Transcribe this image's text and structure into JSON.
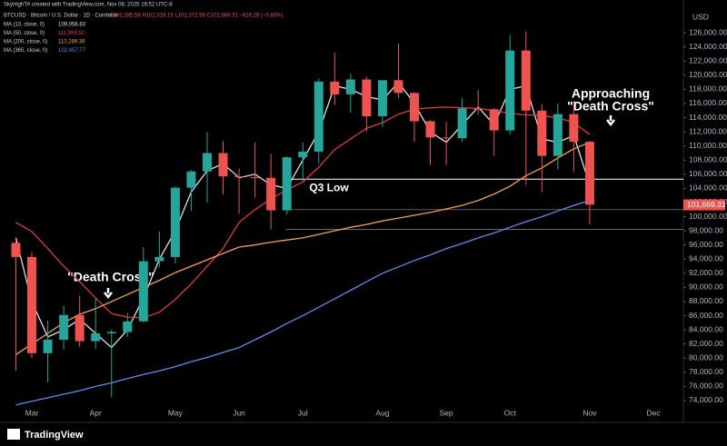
{
  "chart_data": {
    "type": "candlestick",
    "watermark": "SkyHighTA created with TradingView.com, Nov 08, 2025 19:52 UTC-8",
    "symbol_line": "BTCUSD · Bitcoin / U.S. Dollar · 1D · Coinbase",
    "ohlc_line": "O102,285.58  H102,319.15  L101,372.58  C101,669.31  −616.26 (−0.60%)",
    "currency": "USD",
    "brand": "TradingView",
    "categories": [
      null,
      "Mar",
      null,
      null,
      null,
      "Apr",
      null,
      null,
      null,
      null,
      "May",
      null,
      null,
      null,
      "Jun",
      null,
      null,
      null,
      "Jul",
      null,
      null,
      null,
      null,
      "Aug",
      null,
      null,
      null,
      "Sep",
      null,
      null,
      null,
      "Oct",
      null,
      null,
      null,
      null,
      "Nov",
      null,
      null,
      null,
      "Dec"
    ],
    "candles": {
      "up_color": "#26a69a",
      "down_color": "#ef5350",
      "open": [
        96300,
        94300,
        80700,
        82600,
        86100,
        82400,
        83500,
        83700,
        85200,
        93700,
        94300,
        104100,
        106400,
        109000,
        105700,
        105600,
        105500,
        100900,
        108400,
        109200,
        119100,
        117300,
        119400,
        114200,
        119300,
        117500,
        113500,
        111200,
        111100,
        115300,
        115200,
        112200,
        123500,
        115000,
        108600,
        114500,
        110600,
        null,
        null,
        null,
        null
      ],
      "high": [
        96500,
        95000,
        85300,
        87400,
        88800,
        88500,
        84000,
        86400,
        95700,
        97900,
        104300,
        106600,
        112000,
        110700,
        106800,
        110500,
        108900,
        108500,
        110500,
        119500,
        123200,
        120200,
        119800,
        119300,
        124500,
        117600,
        113700,
        113400,
        116800,
        117900,
        115400,
        125700,
        126200,
        115900,
        116000,
        116400,
        110700,
        null,
        null,
        null,
        null
      ],
      "low": [
        78200,
        80000,
        76600,
        81200,
        81600,
        81300,
        74500,
        83000,
        85100,
        92800,
        93400,
        100800,
        102000,
        103100,
        100400,
        102700,
        98200,
        100300,
        105100,
        107500,
        115800,
        114700,
        112000,
        112700,
        116800,
        110600,
        107300,
        107300,
        110600,
        114400,
        108600,
        111600,
        104500,
        103500,
        106700,
        106300,
        98900,
        null,
        null,
        null,
        null
      ],
      "close": [
        94300,
        80700,
        82600,
        86100,
        82400,
        83500,
        83700,
        85200,
        93700,
        94300,
        104100,
        106400,
        109000,
        105700,
        105600,
        105500,
        100900,
        108400,
        109200,
        119100,
        117300,
        119400,
        114200,
        119300,
        117500,
        113500,
        111200,
        111100,
        115300,
        115200,
        112200,
        123500,
        115000,
        108600,
        114500,
        110600,
        101700,
        null,
        null,
        null,
        null
      ]
    },
    "series": [
      {
        "name": "MA (10, close, 0)",
        "last_label": "109,056.83",
        "color": "#e0e0e0",
        "values": [
          97000,
          88000,
          83000,
          84000,
          85500,
          83500,
          81500,
          84000,
          88500,
          94000,
          98000,
          103500,
          106500,
          107500,
          105500,
          106000,
          104500,
          104000,
          108000,
          112000,
          118500,
          118000,
          117000,
          116500,
          119000,
          116000,
          112000,
          110500,
          113000,
          115500,
          113000,
          118000,
          118500,
          111000,
          110500,
          111500,
          104500,
          null,
          null,
          null,
          null
        ]
      },
      {
        "name": "MA (50, close, 0)",
        "last_label": "111,969.92",
        "color": "#e0393e",
        "values": [
          99200,
          97900,
          95500,
          93000,
          90800,
          88500,
          86300,
          85800,
          85700,
          86500,
          88300,
          90500,
          93000,
          95500,
          99200,
          101000,
          102500,
          103800,
          104900,
          107000,
          109500,
          111000,
          112500,
          113300,
          114500,
          115200,
          115400,
          115500,
          115400,
          115300,
          115000,
          114600,
          114400,
          114300,
          114000,
          113300,
          111600,
          null,
          null,
          null,
          null
        ]
      },
      {
        "name": "MA (200, close, 0)",
        "last_label": "110,289.36",
        "color": "#f5a04a",
        "values": [
          80500,
          82000,
          83500,
          85000,
          86200,
          87000,
          88000,
          89000,
          90000,
          91000,
          92100,
          93000,
          93900,
          94800,
          95700,
          96000,
          96400,
          96700,
          97000,
          97500,
          98000,
          98500,
          98900,
          99400,
          99800,
          100200,
          100600,
          101100,
          101600,
          102300,
          103200,
          104300,
          105800,
          106900,
          108300,
          109600,
          110500,
          null,
          null,
          null,
          null
        ]
      },
      {
        "name": "MA (365, close, 0)",
        "last_label": "102,457.77",
        "color": "#5b8def",
        "values": [
          73400,
          73900,
          74400,
          74900,
          75400,
          76000,
          76500,
          77100,
          77700,
          78200,
          78800,
          79500,
          80100,
          80800,
          81500,
          82600,
          83700,
          84900,
          86000,
          87200,
          88400,
          89600,
          90800,
          92000,
          92900,
          93800,
          94600,
          95500,
          96200,
          97000,
          97700,
          98500,
          99300,
          100000,
          100800,
          101600,
          102300,
          null,
          null,
          null,
          null
        ]
      }
    ],
    "levels": [
      {
        "label": "Q3 Low",
        "value": 105300,
        "color": "#ffffff"
      }
    ],
    "lines": [
      101000,
      98200
    ],
    "last_price": {
      "value": 101669.31,
      "label": "101,669.31"
    },
    "annotations": [
      "\"Death Cross\"",
      "Approaching",
      "\"Death Cross\""
    ],
    "ylim": [
      71300,
      129100
    ],
    "yticks": [
      {
        "value": 74000,
        "label": "74,000.00"
      },
      {
        "value": 76000,
        "label": "76,000.00"
      },
      {
        "value": 78000,
        "label": "78,000.00"
      },
      {
        "value": 80000,
        "label": "80,000.00"
      },
      {
        "value": 82000,
        "label": "82,000.00"
      },
      {
        "value": 84000,
        "label": "84,000.00"
      },
      {
        "value": 86000,
        "label": "86,000.00"
      },
      {
        "value": 88000,
        "label": "88,000.00"
      },
      {
        "value": 90000,
        "label": "90,000.00"
      },
      {
        "value": 92000,
        "label": "92,000.00"
      },
      {
        "value": 94000,
        "label": "94,000.00"
      },
      {
        "value": 96000,
        "label": "96,000.00"
      },
      {
        "value": 98000,
        "label": "98,000.00"
      },
      {
        "value": 100000,
        "label": "100,000.00"
      },
      {
        "value": 102000,
        "label": "102,000.00"
      },
      {
        "value": 104000,
        "label": "104,000.00"
      },
      {
        "value": 106000,
        "label": "106,000.00"
      },
      {
        "value": 108000,
        "label": "108,000.00"
      },
      {
        "value": 110000,
        "label": "110,000.00"
      },
      {
        "value": 112000,
        "label": "112,000.00"
      },
      {
        "value": 114000,
        "label": "114,000.00"
      },
      {
        "value": 116000,
        "label": "116,000.00"
      },
      {
        "value": 118000,
        "label": "118,000.00"
      },
      {
        "value": 120000,
        "label": "120,000.00"
      },
      {
        "value": 122000,
        "label": "122,000.00"
      },
      {
        "value": 124000,
        "label": "124,000.00"
      },
      {
        "value": 126000,
        "label": "126,000.00"
      }
    ],
    "grid": false
  }
}
